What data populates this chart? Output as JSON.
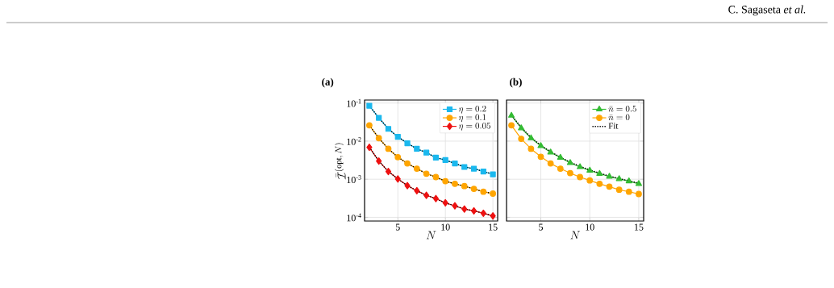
{
  "chart_data": [
    {
      "type": "line",
      "title": "(a)",
      "xlabel": "N",
      "ylabel": "\\bar{\\mathcal{I}}^{(\\mathrm{opt},\\,N)}",
      "annotations": [
        "C. Sagaseta *et al.*"
      ],
      "x": [
        2,
        3,
        4,
        5,
        6,
        7,
        8,
        9,
        10,
        11,
        12,
        13,
        14,
        15
      ],
      "xlim": [
        1.5,
        15.5
      ],
      "xticks": [
        5,
        10,
        15
      ],
      "ylim": [
        8e-05,
        0.12
      ],
      "yticks": [
        {
          "value": 0.1,
          "label": "10$^{-1}$"
        },
        {
          "value": 0.01,
          "label": "10$^{-2}$"
        },
        {
          "value": 0.001,
          "label": "10$^{-3}$"
        },
        {
          "value": 0.0001,
          "label": "10$^{-4}$"
        }
      ],
      "log": "y",
      "grid": true,
      "legend": "top right",
      "series": [
        {
          "name": "\\eta = 0.2",
          "color": "#1ab8ee",
          "marker": "square",
          "values": [
            0.085,
            0.041,
            0.021,
            0.013,
            0.0088,
            0.0063,
            0.005,
            0.0037,
            0.0032,
            0.0026,
            0.0021,
            0.0019,
            0.0016,
            0.00135
          ]
        },
        {
          "name": "\\eta = 0.1",
          "color": "#ffa500",
          "marker": "circle",
          "values": [
            0.026,
            0.012,
            0.0063,
            0.0038,
            0.0026,
            0.0019,
            0.0014,
            0.00114,
            0.00089,
            0.00076,
            0.00066,
            0.00056,
            0.00047,
            0.00042
          ]
        },
        {
          "name": "\\eta = 0.05",
          "color": "#ee1111",
          "marker": "diamond",
          "values": [
            0.0069,
            0.003,
            0.0016,
            0.00102,
            0.00068,
            0.0005,
            0.00038,
            0.00031,
            0.00024,
            0.0002,
            0.000165,
            0.000148,
            0.000128,
            0.000109
          ]
        },
        {
          "color": "#000000",
          "marker": "none",
          "line_style": "dotted",
          "values": [
            0.085,
            0.041,
            0.021,
            0.013,
            0.0088,
            0.0063,
            0.005,
            0.0037,
            0.0032,
            0.0026,
            0.0021,
            0.0019,
            0.0016,
            0.00135
          ]
        },
        {
          "color": "#000000",
          "marker": "none",
          "line_style": "dotted",
          "values": [
            0.026,
            0.012,
            0.0063,
            0.0038,
            0.0026,
            0.0019,
            0.0014,
            0.00114,
            0.00089,
            0.00076,
            0.00066,
            0.00056,
            0.00047,
            0.00042
          ]
        },
        {
          "color": "#000000",
          "marker": "none",
          "line_style": "dotted",
          "values": [
            0.0069,
            0.003,
            0.0016,
            0.00102,
            0.00068,
            0.0005,
            0.00038,
            0.00031,
            0.00024,
            0.0002,
            0.000165,
            0.000148,
            0.000128,
            0.000109
          ]
        }
      ]
    },
    {
      "type": "line",
      "title": "(b)",
      "xlabel": "N",
      "x": [
        2,
        3,
        4,
        5,
        6,
        7,
        8,
        9,
        10,
        11,
        12,
        13,
        14,
        15
      ],
      "xlim": [
        1.5,
        15.5
      ],
      "xticks": [
        5,
        10,
        15
      ],
      "ylim": [
        8e-05,
        0.12
      ],
      "yticks": [
        {
          "value": 0.1,
          "label": null
        },
        {
          "value": 0.01,
          "label": null
        },
        {
          "value": 0.001,
          "label": null
        },
        {
          "value": 0.0001,
          "label": null
        }
      ],
      "log": "y",
      "grid": true,
      "legend": "top right",
      "tick_labels": "x",
      "series": [
        {
          "name": "\\bar{n} = 0.5",
          "color": "#33bb33",
          "marker": "triangle",
          "values": [
            0.047,
            0.022,
            0.012,
            0.0075,
            0.0051,
            0.0037,
            0.0027,
            0.0021,
            0.0017,
            0.0014,
            0.00118,
            0.00102,
            0.00089,
            0.00076
          ]
        },
        {
          "name": "\\bar{n} = 0",
          "color": "#ffa500",
          "marker": "circle",
          "values": [
            0.026,
            0.0115,
            0.0063,
            0.0039,
            0.0026,
            0.0019,
            0.00145,
            0.00114,
            0.00093,
            0.00076,
            0.00064,
            0.00053,
            0.00047,
            0.00041
          ]
        },
        {
          "name": "\\mathrm{Fit}",
          "color": "#000000",
          "marker": "none",
          "line_style": "dotted",
          "values": [
            0.048,
            0.023,
            0.0125,
            0.0078,
            0.0053,
            0.0038,
            0.0028,
            0.0022,
            0.00175,
            0.00145,
            0.00121,
            0.00104,
            0.00091,
            0.00079
          ]
        }
      ]
    }
  ]
}
